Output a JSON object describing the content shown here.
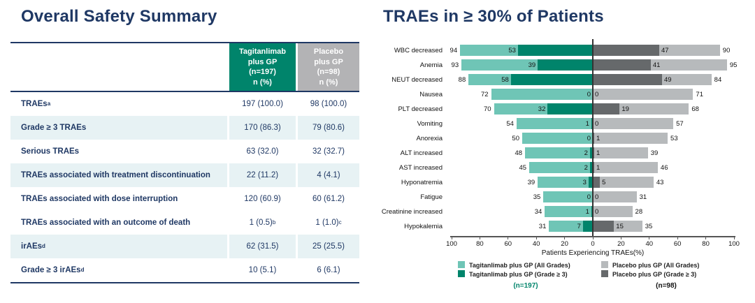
{
  "colors": {
    "navy": "#1F3864",
    "teal_light": "#6FC5B6",
    "teal_dark": "#00846B",
    "gray_light": "#B7BABC",
    "gray_dark": "#66696B",
    "header_gray": "#B3B3B5",
    "row_shade": "#E7F2F4"
  },
  "left_panel": {
    "title": "Overall Safety Summary",
    "table": {
      "header": [
        {
          "lines": [
            "Tagitanlimab",
            "plus GP",
            "(n=197)",
            "n (%)"
          ],
          "bg": "#00846B"
        },
        {
          "lines": [
            "Placebo",
            "plus GP",
            "(n=98)",
            "n (%)"
          ],
          "bg": "#B3B3B5"
        }
      ],
      "rows": [
        {
          "label": "TRAEs",
          "label_sup": "a",
          "col1": "197 (100.0)",
          "col1_sup": "",
          "col2": "98 (100.0)",
          "col2_sup": "",
          "shaded": false
        },
        {
          "label": "Grade ≥ 3 TRAEs",
          "label_sup": "",
          "col1": "170 (86.3)",
          "col1_sup": "",
          "col2": "79 (80.6)",
          "col2_sup": "",
          "shaded": true
        },
        {
          "label": "Serious TRAEs",
          "label_sup": "",
          "col1": "63 (32.0)",
          "col1_sup": "",
          "col2": "32 (32.7)",
          "col2_sup": "",
          "shaded": false
        },
        {
          "label": "TRAEs associated with treatment discontinuation",
          "label_sup": "",
          "col1": "22 (11.2)",
          "col1_sup": "",
          "col2": "4 (4.1)",
          "col2_sup": "",
          "shaded": true
        },
        {
          "label": "TRAEs associated with dose interruption",
          "label_sup": "",
          "col1": "120 (60.9)",
          "col1_sup": "",
          "col2": "60 (61.2)",
          "col2_sup": "",
          "shaded": false
        },
        {
          "label": "TRAEs associated with an outcome of death",
          "label_sup": "",
          "col1": "1 (0.5)",
          "col1_sup": "b",
          "col2": "1 (1.0)",
          "col2_sup": "c",
          "shaded": false
        },
        {
          "label": "irAEs",
          "label_sup": "d",
          "col1": "62 (31.5)",
          "col1_sup": "",
          "col2": "25 (25.5)",
          "col2_sup": "",
          "shaded": true
        },
        {
          "label": "Grade ≥ 3 irAEs",
          "label_sup": "d",
          "col1": "10 (5.1)",
          "col1_sup": "",
          "col2": "6 (6.1)",
          "col2_sup": "",
          "shaded": false
        }
      ]
    }
  },
  "right_panel": {
    "title": "TRAEs in ≥ 30% of Patients",
    "group_n_left": "(n=197)",
    "group_n_right": "(n=98)"
  },
  "chart_data": {
    "type": "bar",
    "variant": "diverging-horizontal-stacked",
    "title": "TRAEs in ≥ 30% of Patients",
    "categories": [
      "WBC decreased",
      "Anemia",
      "NEUT decreased",
      "Nausea",
      "PLT decreased",
      "Vomiting",
      "Anorexia",
      "ALT increased",
      "AST increased",
      "Hyponatremia",
      "Fatigue",
      "Creatinine increased",
      "Hypokalemia"
    ],
    "series": [
      {
        "name": "Tagitanlimab plus GP (All Grades)",
        "side": "left",
        "color": "#6FC5B6",
        "values": [
          94,
          93,
          88,
          72,
          70,
          54,
          50,
          48,
          45,
          39,
          35,
          34,
          31
        ]
      },
      {
        "name": "Tagitanlimab plus GP (Grade ≥ 3)",
        "side": "left",
        "color": "#00846B",
        "values": [
          53,
          39,
          58,
          0,
          32,
          1,
          0,
          2,
          2,
          3,
          0,
          1,
          7
        ]
      },
      {
        "name": "Placebo plus GP (Grade ≥ 3)",
        "side": "right",
        "color": "#66696B",
        "values": [
          47,
          41,
          49,
          0,
          19,
          0,
          1,
          1,
          1,
          5,
          0,
          0,
          15
        ]
      },
      {
        "name": "Placebo plus GP (All Grades)",
        "side": "right",
        "color": "#B7BABC",
        "values": [
          90,
          95,
          84,
          71,
          68,
          57,
          53,
          39,
          46,
          43,
          31,
          28,
          35
        ]
      }
    ],
    "xlabel": "Patients Experiencing TRAEs(%)",
    "x_ticks": [
      100,
      80,
      60,
      40,
      20,
      0,
      20,
      40,
      60,
      80,
      100
    ],
    "xlim_each_side": [
      0,
      100
    ],
    "grid": false,
    "legend_position": "bottom",
    "legend": [
      {
        "label": "Tagitanlimab plus GP (All Grades)",
        "color": "#6FC5B6"
      },
      {
        "label": "Tagitanlimab plus GP (Grade ≥ 3)",
        "color": "#00846B"
      },
      {
        "label": "Placebo plus GP (All Grades)",
        "color": "#B7BABC"
      },
      {
        "label": "Placebo plus GP (Grade ≥ 3)",
        "color": "#66696B"
      }
    ],
    "group_ns": [
      "(n=197)",
      "(n=98)"
    ]
  }
}
